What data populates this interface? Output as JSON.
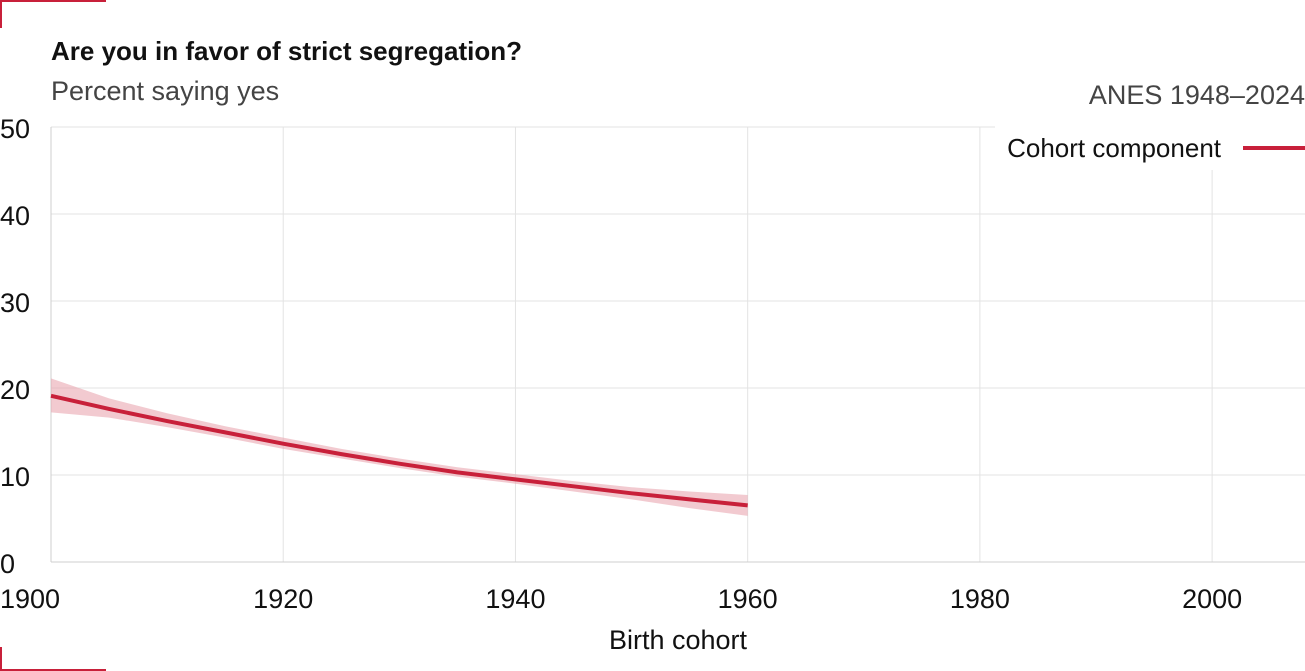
{
  "chart_data": {
    "type": "line",
    "title": "Are you in favor of strict segregation?",
    "subtitle": "Percent saying yes",
    "source_note": "ANES 1948–2024",
    "xlabel": "Birth cohort",
    "ylabel": "",
    "xlim": [
      1900,
      2008
    ],
    "ylim": [
      0,
      50
    ],
    "x_ticks": [
      1900,
      1920,
      1940,
      1960,
      1980,
      2000
    ],
    "y_ticks": [
      0,
      10,
      20,
      30,
      40,
      50
    ],
    "grid": true,
    "legend_position": "top-right",
    "series": [
      {
        "name": "Cohort component",
        "color": "#c8203a",
        "band_color": "#e9a6b0",
        "x": [
          1900,
          1905,
          1910,
          1915,
          1920,
          1925,
          1930,
          1935,
          1940,
          1945,
          1950,
          1955,
          1960
        ],
        "y": [
          19.1,
          17.6,
          16.2,
          14.9,
          13.6,
          12.4,
          11.3,
          10.3,
          9.5,
          8.7,
          7.9,
          7.2,
          6.5
        ],
        "lower": [
          17.2,
          16.6,
          15.5,
          14.3,
          13.0,
          11.9,
          10.8,
          9.8,
          9.0,
          8.1,
          7.2,
          6.2,
          5.3
        ],
        "upper": [
          21.1,
          18.8,
          17.1,
          15.6,
          14.3,
          13.0,
          11.9,
          10.9,
          10.1,
          9.3,
          8.6,
          8.1,
          7.7
        ]
      }
    ]
  }
}
